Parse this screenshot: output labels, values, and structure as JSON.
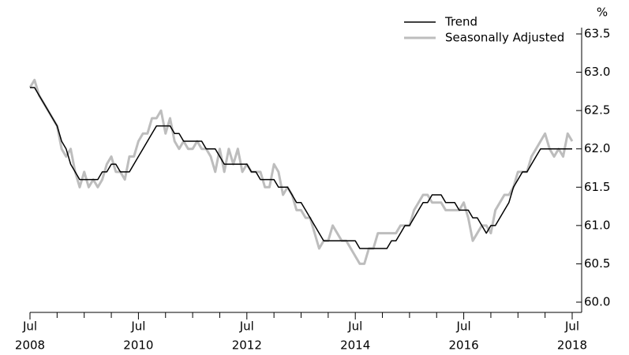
{
  "chart_data": {
    "type": "line",
    "y_unit": "%",
    "x": [
      "2008-07",
      "2008-08",
      "2008-09",
      "2008-10",
      "2008-11",
      "2008-12",
      "2009-01",
      "2009-02",
      "2009-03",
      "2009-04",
      "2009-05",
      "2009-06",
      "2009-07",
      "2009-08",
      "2009-09",
      "2009-10",
      "2009-11",
      "2009-12",
      "2010-01",
      "2010-02",
      "2010-03",
      "2010-04",
      "2010-05",
      "2010-06",
      "2010-07",
      "2010-08",
      "2010-09",
      "2010-10",
      "2010-11",
      "2010-12",
      "2011-01",
      "2011-02",
      "2011-03",
      "2011-04",
      "2011-05",
      "2011-06",
      "2011-07",
      "2011-08",
      "2011-09",
      "2011-10",
      "2011-11",
      "2011-12",
      "2012-01",
      "2012-02",
      "2012-03",
      "2012-04",
      "2012-05",
      "2012-06",
      "2012-07",
      "2012-08",
      "2012-09",
      "2012-10",
      "2012-11",
      "2012-12",
      "2013-01",
      "2013-02",
      "2013-03",
      "2013-04",
      "2013-05",
      "2013-06",
      "2013-07",
      "2013-08",
      "2013-09",
      "2013-10",
      "2013-11",
      "2013-12",
      "2014-01",
      "2014-02",
      "2014-03",
      "2014-04",
      "2014-05",
      "2014-06",
      "2014-07",
      "2014-08",
      "2014-09",
      "2014-10",
      "2014-11",
      "2014-12",
      "2015-01",
      "2015-02",
      "2015-03",
      "2015-04",
      "2015-05",
      "2015-06",
      "2015-07",
      "2015-08",
      "2015-09",
      "2015-10",
      "2015-11",
      "2015-12",
      "2016-01",
      "2016-02",
      "2016-03",
      "2016-04",
      "2016-05",
      "2016-06",
      "2016-07",
      "2016-08",
      "2016-09",
      "2016-10",
      "2016-11",
      "2016-12",
      "2017-01",
      "2017-02",
      "2017-03",
      "2017-04",
      "2017-05",
      "2017-06",
      "2017-07",
      "2017-08",
      "2017-09",
      "2017-10",
      "2017-11",
      "2017-12",
      "2018-01",
      "2018-02",
      "2018-03",
      "2018-04",
      "2018-05",
      "2018-06",
      "2018-07"
    ],
    "series": [
      {
        "name": "Seasonally Adjusted",
        "color": "#bdbdbd",
        "width": 3,
        "values": [
          62.8,
          62.9,
          62.7,
          62.6,
          62.5,
          62.4,
          62.3,
          62.0,
          61.9,
          62.0,
          61.7,
          61.5,
          61.7,
          61.5,
          61.6,
          61.5,
          61.6,
          61.8,
          61.9,
          61.7,
          61.7,
          61.6,
          61.9,
          61.9,
          62.1,
          62.2,
          62.2,
          62.4,
          62.4,
          62.5,
          62.2,
          62.4,
          62.1,
          62.0,
          62.1,
          62.0,
          62.0,
          62.1,
          62.0,
          62.0,
          61.9,
          61.7,
          62.0,
          61.7,
          62.0,
          61.8,
          62.0,
          61.7,
          61.8,
          61.7,
          61.7,
          61.7,
          61.5,
          61.5,
          61.8,
          61.7,
          61.4,
          61.5,
          61.4,
          61.2,
          61.2,
          61.1,
          61.1,
          60.9,
          60.7,
          60.8,
          60.8,
          61.0,
          60.9,
          60.8,
          60.8,
          60.7,
          60.6,
          60.5,
          60.5,
          60.7,
          60.7,
          60.9,
          60.9,
          60.9,
          60.9,
          60.9,
          61.0,
          61.0,
          61.0,
          61.2,
          61.3,
          61.4,
          61.4,
          61.3,
          61.3,
          61.3,
          61.2,
          61.2,
          61.2,
          61.2,
          61.3,
          61.1,
          60.8,
          60.9,
          61.0,
          61.0,
          60.9,
          61.2,
          61.3,
          61.4,
          61.4,
          61.5,
          61.7,
          61.7,
          61.7,
          61.9,
          62.0,
          62.1,
          62.2,
          62.0,
          61.9,
          62.0,
          61.9,
          62.2,
          62.1
        ]
      },
      {
        "name": "Trend",
        "color": "#000000",
        "width": 1.5,
        "values": [
          62.8,
          62.8,
          62.7,
          62.6,
          62.5,
          62.4,
          62.3,
          62.1,
          62.0,
          61.8,
          61.7,
          61.6,
          61.6,
          61.6,
          61.6,
          61.6,
          61.7,
          61.7,
          61.8,
          61.8,
          61.7,
          61.7,
          61.7,
          61.8,
          61.9,
          62.0,
          62.1,
          62.2,
          62.3,
          62.3,
          62.3,
          62.3,
          62.2,
          62.2,
          62.1,
          62.1,
          62.1,
          62.1,
          62.1,
          62.0,
          62.0,
          62.0,
          61.9,
          61.8,
          61.8,
          61.8,
          61.8,
          61.8,
          61.8,
          61.7,
          61.7,
          61.6,
          61.6,
          61.6,
          61.6,
          61.5,
          61.5,
          61.5,
          61.4,
          61.3,
          61.3,
          61.2,
          61.1,
          61.0,
          60.9,
          60.8,
          60.8,
          60.8,
          60.8,
          60.8,
          60.8,
          60.8,
          60.8,
          60.7,
          60.7,
          60.7,
          60.7,
          60.7,
          60.7,
          60.7,
          60.8,
          60.8,
          60.9,
          61.0,
          61.0,
          61.1,
          61.2,
          61.3,
          61.3,
          61.4,
          61.4,
          61.4,
          61.3,
          61.3,
          61.3,
          61.2,
          61.2,
          61.2,
          61.1,
          61.1,
          61.0,
          60.9,
          61.0,
          61.0,
          61.1,
          61.2,
          61.3,
          61.5,
          61.6,
          61.7,
          61.7,
          61.8,
          61.9,
          62.0,
          62.0,
          62.0,
          62.0,
          62.0,
          62.0,
          62.0,
          62.0
        ]
      }
    ],
    "legend_order": [
      1,
      0
    ],
    "legend": "upper right",
    "xlim": [
      "2008-07",
      "2018-07"
    ],
    "xticks": [
      {
        "value": "2008-07",
        "label": [
          "Jul",
          "2008"
        ]
      },
      {
        "value": "2010-07",
        "label": [
          "Jul",
          "2010"
        ]
      },
      {
        "value": "2012-07",
        "label": [
          "Jul",
          "2012"
        ]
      },
      {
        "value": "2014-07",
        "label": [
          "Jul",
          "2014"
        ]
      },
      {
        "value": "2016-07",
        "label": [
          "Jul",
          "2016"
        ]
      },
      {
        "value": "2018-07",
        "label": [
          "Jul",
          "2018"
        ]
      }
    ],
    "xminorticks": [
      "2009-07",
      "2011-07",
      "2013-07",
      "2015-07",
      "2017-07",
      "2009-01",
      "2010-01",
      "2011-01",
      "2012-01",
      "2013-01",
      "2014-01",
      "2015-01",
      "2016-01",
      "2017-01",
      "2018-01"
    ],
    "ylim": [
      60,
      63.5
    ],
    "yticks": [
      {
        "value": 60,
        "label": "60.0"
      },
      60.5,
      {
        "value": 61,
        "label": "61.0"
      },
      61.5,
      {
        "value": 62,
        "label": "62.0"
      },
      62.5,
      {
        "value": 63,
        "label": "63.0"
      },
      63.5
    ],
    "y_axis_side": "right"
  }
}
